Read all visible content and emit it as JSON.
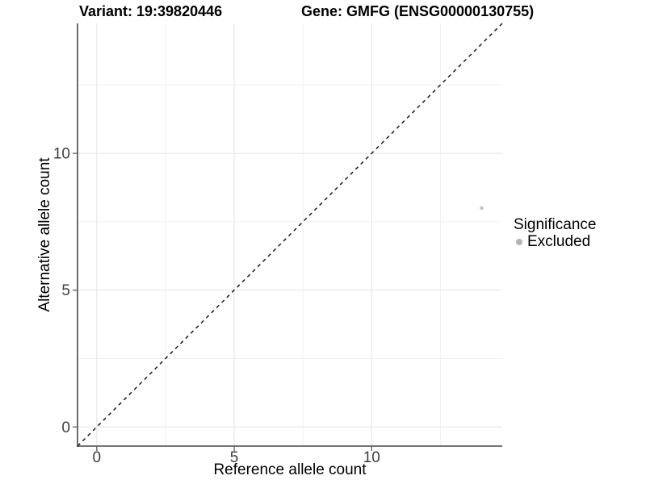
{
  "chart_data": {
    "type": "scatter",
    "title_left": "Variant: 19:39820446",
    "title_right": "Gene: GMFG (ENSG00000130755)",
    "xlabel": "Reference allele count",
    "ylabel": "Alternative allele count",
    "xlim": [
      -0.7,
      14.75
    ],
    "ylim": [
      -0.7,
      14.75
    ],
    "x_ticks": [
      0,
      5,
      10
    ],
    "y_ticks": [
      0,
      5,
      10
    ],
    "x_tick_labels": [
      "0",
      "5",
      "10"
    ],
    "y_tick_labels": [
      "0",
      "5",
      "10"
    ],
    "x_minor_ticks": [
      2.5,
      7.5,
      12.5
    ],
    "y_minor_ticks": [
      2.5,
      7.5,
      12.5
    ],
    "grid": true,
    "reference_line": {
      "type": "identity",
      "slope": 1,
      "intercept": 0,
      "linetype": "dashed"
    },
    "series": [
      {
        "name": "Excluded",
        "color": "#c4c4c4",
        "points": [
          {
            "x": 14,
            "y": 8
          }
        ]
      }
    ],
    "legend": {
      "title": "Significance",
      "position": "right",
      "items": [
        {
          "label": "Excluded",
          "color": "#b3b3b3"
        }
      ]
    }
  },
  "style": {
    "background": "#ffffff",
    "grid_major": "#e8e8e8",
    "grid_minor": "#f0f0f0",
    "axis_line": "#474747",
    "tick_mark": "#666666",
    "tick_label": "#3d3d3d",
    "ref_line": "#1a1a1a"
  }
}
